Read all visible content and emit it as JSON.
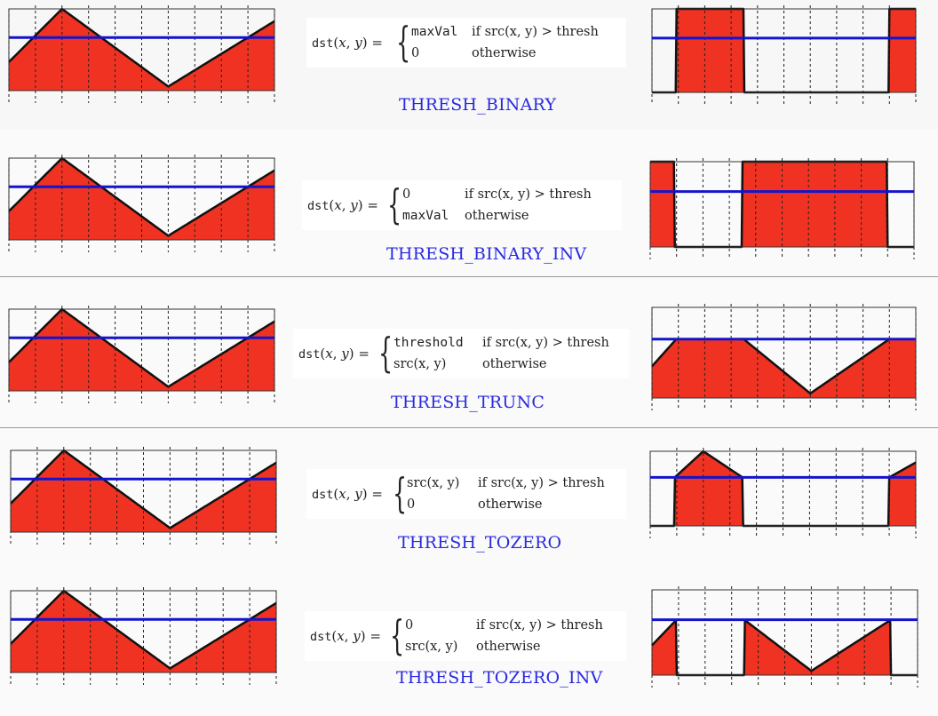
{
  "colors": {
    "fill": "#f03222",
    "threshold_line": "#1414cc",
    "outline": "#111111",
    "title": "#2a2ae0"
  },
  "thresholds": [
    {
      "id": "binary",
      "title": "THRESH_BINARY",
      "lhs": "dst(x, y) =",
      "cases": [
        {
          "value": "maxVal",
          "condition": "if src(x, y) > thresh"
        },
        {
          "value": "0",
          "condition": "otherwise"
        }
      ]
    },
    {
      "id": "binary_inv",
      "title": "THRESH_BINARY_INV",
      "lhs": "dst(x, y) =",
      "cases": [
        {
          "value": "0",
          "condition": "if src(x, y) > thresh"
        },
        {
          "value": "maxVal",
          "condition": "otherwise"
        }
      ]
    },
    {
      "id": "trunc",
      "title": "THRESH_TRUNC",
      "lhs": "dst(x, y) =",
      "cases": [
        {
          "value": "threshold",
          "condition": "if src(x, y) > thresh"
        },
        {
          "value": "src(x, y)",
          "condition": "otherwise"
        }
      ]
    },
    {
      "id": "tozero",
      "title": "THRESH_TOZERO",
      "lhs": "dst(x, y) =",
      "cases": [
        {
          "value": "src(x, y)",
          "condition": "if src(x, y) > thresh"
        },
        {
          "value": "0",
          "condition": "otherwise"
        }
      ]
    },
    {
      "id": "tozero_inv",
      "title": "THRESH_TOZERO_INV",
      "lhs": "dst(x, y) =",
      "cases": [
        {
          "value": "0",
          "condition": "if src(x, y) > thresh"
        },
        {
          "value": "src(x, y)",
          "condition": "otherwise"
        }
      ]
    }
  ],
  "signal": {
    "x": [
      0,
      0.2,
      0.6,
      1
    ],
    "y": [
      0.35,
      1,
      0.05,
      0.85
    ],
    "threshold": 0.65
  }
}
